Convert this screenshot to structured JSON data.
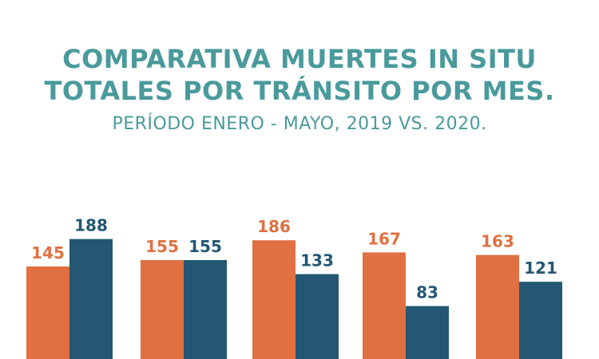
{
  "header": {
    "title_line1": "COMPARATIVA MUERTES IN SITU",
    "title_line2": "TOTALES POR TRÁNSITO POR MES.",
    "subtitle": "PERÍODO ENERO - MAYO, 2019 VS. 2020."
  },
  "colors": {
    "title": "#4a9a9c",
    "series_2019": "#e07041",
    "series_2020": "#235773"
  },
  "chart_data": {
    "type": "bar",
    "title": "COMPARATIVA MUERTES IN SITU TOTALES POR TRÁNSITO POR MES.",
    "subtitle": "PERÍODO ENERO - MAYO, 2019 VS. 2020.",
    "categories": [
      "",
      "",
      "",
      "",
      ""
    ],
    "series": [
      {
        "values": [
          145,
          155,
          186,
          167,
          163
        ],
        "color": "#e07041"
      },
      {
        "values": [
          188,
          155,
          133,
          83,
          121
        ],
        "color": "#235773"
      }
    ],
    "ylim": [
      0,
      200
    ],
    "grid": false,
    "data_labels": true
  }
}
